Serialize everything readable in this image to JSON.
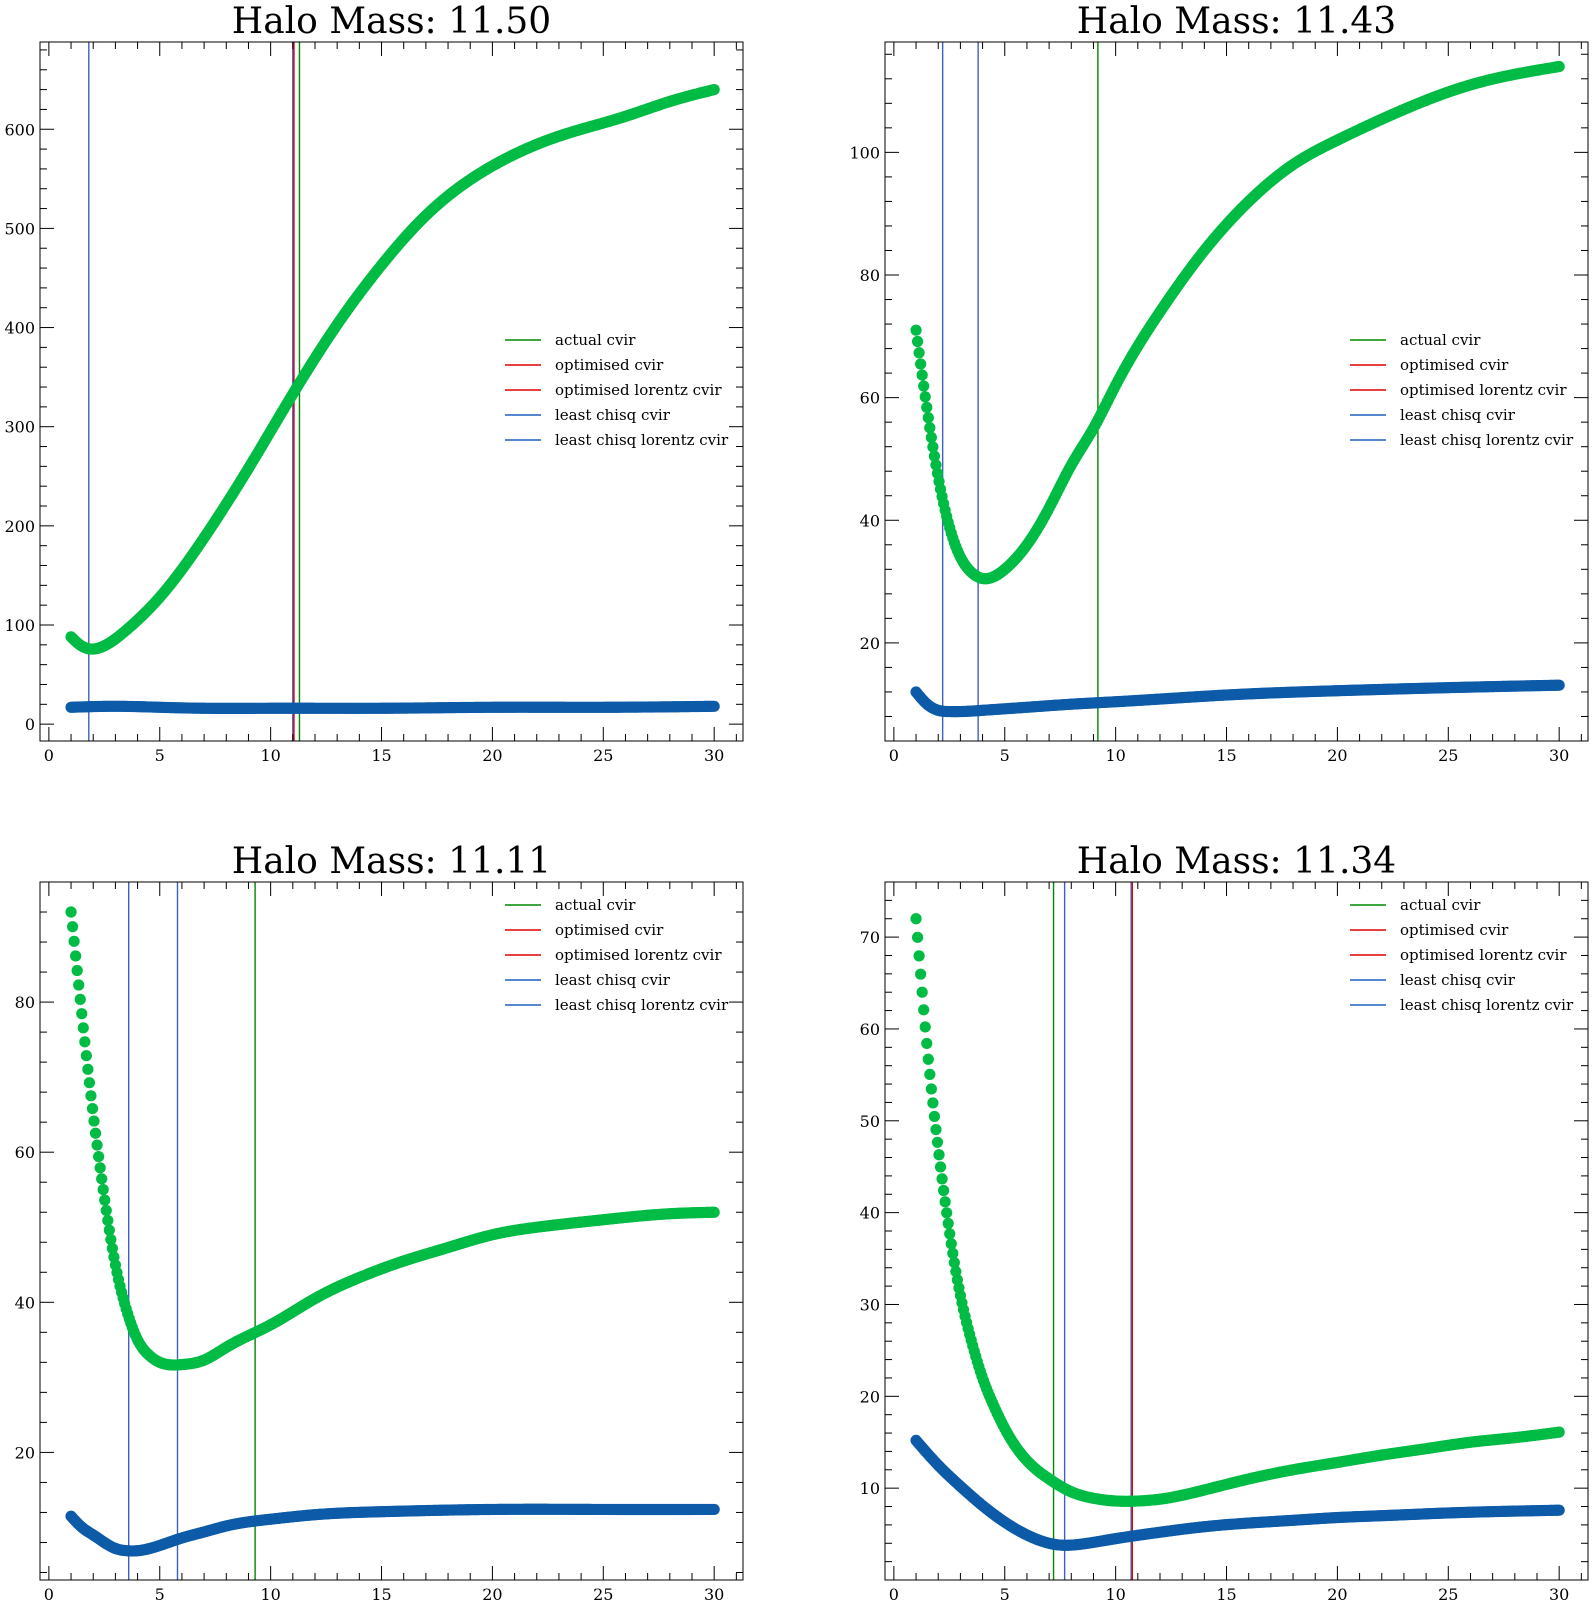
{
  "chart_data": [
    {
      "type": "scatter",
      "title": "Halo Mass: 11.50",
      "xlim": [
        -0.4,
        31.3
      ],
      "ylim": [
        -17,
        688
      ],
      "xticks": [
        0,
        5,
        10,
        15,
        20,
        25,
        30
      ],
      "yticks": [
        0,
        100,
        200,
        300,
        400,
        500,
        600
      ],
      "legend_position": "center-right",
      "series": [
        {
          "id": "green-curve",
          "color": "#00bb44",
          "points": [
            [
              1,
              88
            ],
            [
              1.4,
              80
            ],
            [
              1.8,
              76
            ],
            [
              2.5,
              79
            ],
            [
              3.5,
              95
            ],
            [
              5,
              128
            ],
            [
              7,
              188
            ],
            [
              9,
              258
            ],
            [
              11,
              333
            ],
            [
              13,
              403
            ],
            [
              15,
              463
            ],
            [
              17,
              513
            ],
            [
              20,
              563
            ],
            [
              23,
              593
            ],
            [
              26,
              613
            ],
            [
              28,
              628
            ],
            [
              30,
              640
            ]
          ]
        },
        {
          "id": "blue-curve",
          "color": "#0d5ba8",
          "points": [
            [
              1,
              17
            ],
            [
              3,
              18
            ],
            [
              5,
              17
            ],
            [
              7,
              16
            ],
            [
              10,
              16
            ],
            [
              15,
              16
            ],
            [
              20,
              17
            ],
            [
              25,
              17
            ],
            [
              30,
              18
            ]
          ]
        }
      ],
      "vlines": [
        {
          "x": 1.8,
          "color": "#4060c0"
        },
        {
          "x": 11.0,
          "color": "#4060c0"
        },
        {
          "x": 11.05,
          "color": "#dd0000"
        },
        {
          "x": 11.3,
          "color": "#008800"
        }
      ]
    },
    {
      "type": "scatter",
      "title": "Halo Mass: 11.43",
      "xlim": [
        -0.4,
        31.3
      ],
      "ylim": [
        4,
        118
      ],
      "xticks": [
        0,
        5,
        10,
        15,
        20,
        25,
        30
      ],
      "yticks": [
        20,
        40,
        60,
        80,
        100
      ],
      "legend_position": "center-right",
      "series": [
        {
          "id": "green-curve",
          "color": "#00bb44",
          "points": [
            [
              1,
              71
            ],
            [
              1.5,
              58
            ],
            [
              2,
              47
            ],
            [
              2.5,
              39
            ],
            [
              3,
              34
            ],
            [
              3.5,
              31.5
            ],
            [
              4,
              30.5
            ],
            [
              5,
              32
            ],
            [
              6,
              36
            ],
            [
              7,
              42
            ],
            [
              8,
              49
            ],
            [
              9,
              55
            ],
            [
              10,
              62
            ],
            [
              12,
              74
            ],
            [
              14,
              84
            ],
            [
              16,
              92
            ],
            [
              18,
              98
            ],
            [
              20,
              102
            ],
            [
              23,
              107
            ],
            [
              26,
              111
            ],
            [
              30,
              114
            ]
          ]
        },
        {
          "id": "blue-curve",
          "color": "#0d5ba8",
          "points": [
            [
              1,
              12
            ],
            [
              1.5,
              10
            ],
            [
              2,
              9
            ],
            [
              2.5,
              8.8
            ],
            [
              3,
              8.8
            ],
            [
              4,
              9
            ],
            [
              6,
              9.5
            ],
            [
              8,
              10
            ],
            [
              10,
              10.4
            ],
            [
              15,
              11.5
            ],
            [
              20,
              12.2
            ],
            [
              25,
              12.7
            ],
            [
              30,
              13.1
            ]
          ]
        }
      ],
      "vlines": [
        {
          "x": 2.2,
          "color": "#4060c0"
        },
        {
          "x": 3.8,
          "color": "#4060c0"
        },
        {
          "x": 9.2,
          "color": "#008800"
        }
      ]
    },
    {
      "type": "scatter",
      "title": "Halo Mass: 11.11",
      "xlim": [
        -0.4,
        31.3
      ],
      "ylim": [
        3,
        96
      ],
      "xticks": [
        0,
        5,
        10,
        15,
        20,
        25,
        30
      ],
      "yticks": [
        20,
        40,
        60,
        80
      ],
      "legend_position": "top-right",
      "series": [
        {
          "id": "green-curve",
          "color": "#00bb44",
          "points": [
            [
              1,
              92
            ],
            [
              1.5,
              78
            ],
            [
              2,
              65
            ],
            [
              2.5,
              54
            ],
            [
              3,
              45
            ],
            [
              3.5,
              39
            ],
            [
              4,
              35
            ],
            [
              4.5,
              33
            ],
            [
              5,
              32
            ],
            [
              6,
              31.7
            ],
            [
              7,
              32.3
            ],
            [
              8,
              34
            ],
            [
              10,
              37
            ],
            [
              12,
              40.5
            ],
            [
              14,
              43.3
            ],
            [
              16,
              45.5
            ],
            [
              18,
              47.3
            ],
            [
              20,
              49
            ],
            [
              22,
              50
            ],
            [
              25,
              51
            ],
            [
              28,
              51.8
            ],
            [
              30,
              52
            ]
          ]
        },
        {
          "id": "blue-curve",
          "color": "#0d5ba8",
          "points": [
            [
              1,
              11.5
            ],
            [
              1.5,
              10
            ],
            [
              2,
              9
            ],
            [
              2.5,
              8
            ],
            [
              3,
              7.2
            ],
            [
              3.5,
              6.9
            ],
            [
              4,
              6.9
            ],
            [
              5,
              7.6
            ],
            [
              6,
              8.6
            ],
            [
              7,
              9.4
            ],
            [
              8,
              10.2
            ],
            [
              10,
              11.1
            ],
            [
              12,
              11.7
            ],
            [
              15,
              12.1
            ],
            [
              20,
              12.4
            ],
            [
              25,
              12.4
            ],
            [
              30,
              12.4
            ]
          ]
        }
      ],
      "vlines": [
        {
          "x": 3.6,
          "color": "#4060c0"
        },
        {
          "x": 5.8,
          "color": "#4060c0"
        },
        {
          "x": 9.3,
          "color": "#008800"
        }
      ]
    },
    {
      "type": "scatter",
      "title": "Halo Mass: 11.34",
      "xlim": [
        -0.4,
        31.3
      ],
      "ylim": [
        0,
        76
      ],
      "xticks": [
        0,
        5,
        10,
        15,
        20,
        25,
        30
      ],
      "yticks": [
        10,
        20,
        30,
        40,
        50,
        60,
        70
      ],
      "legend_position": "top-right",
      "series": [
        {
          "id": "green-curve",
          "color": "#00bb44",
          "points": [
            [
              1,
              72
            ],
            [
              1.5,
              58
            ],
            [
              2,
              47
            ],
            [
              2.5,
              38
            ],
            [
              3,
              31
            ],
            [
              3.5,
              26
            ],
            [
              4,
              22
            ],
            [
              4.5,
              19
            ],
            [
              5,
              16.5
            ],
            [
              6,
              13
            ],
            [
              7,
              11
            ],
            [
              8,
              9.6
            ],
            [
              9,
              8.9
            ],
            [
              10,
              8.6
            ],
            [
              11,
              8.6
            ],
            [
              12,
              8.8
            ],
            [
              14,
              9.8
            ],
            [
              16,
              11
            ],
            [
              18,
              12
            ],
            [
              20,
              12.8
            ],
            [
              22,
              13.6
            ],
            [
              24,
              14.3
            ],
            [
              26,
              15
            ],
            [
              28,
              15.5
            ],
            [
              30,
              16.1
            ]
          ]
        },
        {
          "id": "blue-curve",
          "color": "#0d5ba8",
          "points": [
            [
              1,
              15.2
            ],
            [
              2,
              12.5
            ],
            [
              3,
              10.2
            ],
            [
              4,
              8.1
            ],
            [
              5,
              6.3
            ],
            [
              6,
              4.9
            ],
            [
              7,
              4
            ],
            [
              7.5,
              3.8
            ],
            [
              8,
              3.8
            ],
            [
              9,
              4.1
            ],
            [
              10,
              4.5
            ],
            [
              12,
              5.2
            ],
            [
              14,
              5.8
            ],
            [
              16,
              6.2
            ],
            [
              18,
              6.5
            ],
            [
              20,
              6.8
            ],
            [
              22,
              7
            ],
            [
              25,
              7.3
            ],
            [
              28,
              7.5
            ],
            [
              30,
              7.6
            ]
          ]
        }
      ],
      "vlines": [
        {
          "x": 7.2,
          "color": "#008800"
        },
        {
          "x": 7.7,
          "color": "#4060c0"
        },
        {
          "x": 10.7,
          "color": "#4060c0"
        },
        {
          "x": 10.75,
          "color": "#dd0000"
        }
      ]
    }
  ],
  "legend": [
    {
      "label": "actual cvir",
      "color": "#008800"
    },
    {
      "label": "optimised cvir",
      "color": "#dd0000"
    },
    {
      "label": "optimised lorentz cvir",
      "color": "#dd0000"
    },
    {
      "label": "least chisq cvir",
      "color": "#1f5fbf"
    },
    {
      "label": "least chisq lorentz cvir",
      "color": "#1f5fbf"
    }
  ]
}
